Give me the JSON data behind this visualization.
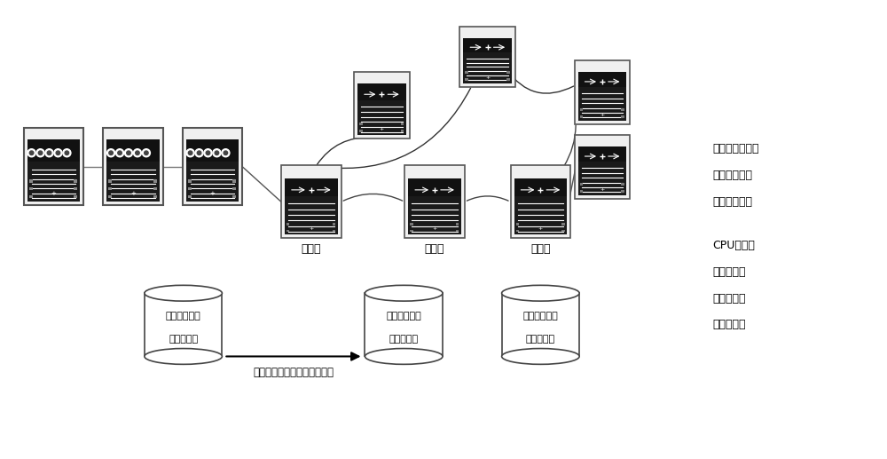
{
  "bg_color": "#ffffff",
  "figsize": [
    10.0,
    5.17
  ],
  "dpi": 100,
  "right_labels_group1": [
    "网络带宽利用率",
    "网络路径时延",
    "网络路径抖动"
  ],
  "right_labels_group2": [
    "CPU利用率",
    "内存利用率",
    "进程利用率",
    "硬盘利用率"
  ],
  "node_label1": "节点一",
  "node_label2": "节点二",
  "node_label3": "节点三",
  "db_line1": "分散计算节点",
  "db_line2": "信息动态表",
  "arrow_label": "带内计算和网络负载信息报文"
}
